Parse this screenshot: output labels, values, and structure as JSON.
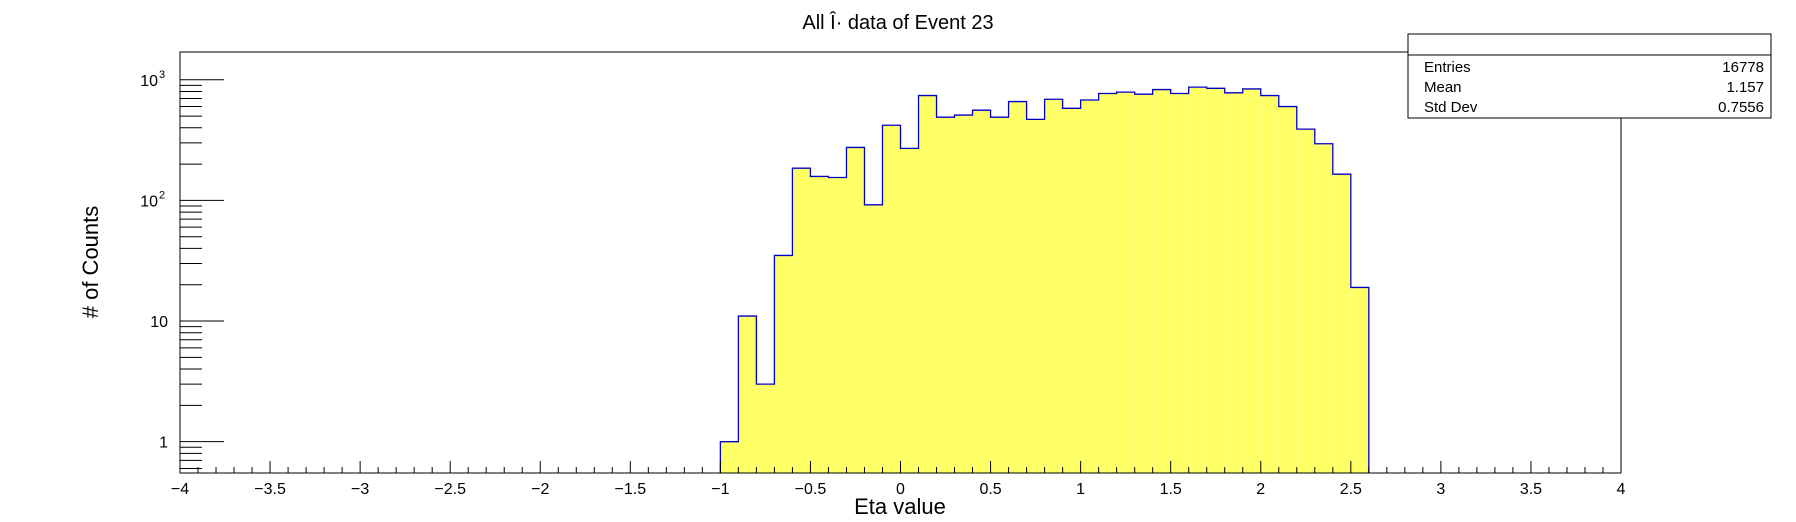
{
  "chart_data": {
    "type": "bar",
    "title": "All Î· data of Event 23",
    "xlabel": "Eta value",
    "ylabel": "# of Counts",
    "xlim": [
      -4,
      4
    ],
    "ylim": [
      0.55,
      1700
    ],
    "yscale": "log",
    "grid": false,
    "x_ticks": [
      -4,
      -3.5,
      -3,
      -2.5,
      -2,
      -1.5,
      -1,
      -0.5,
      0,
      0.5,
      1,
      1.5,
      2,
      2.5,
      3,
      3.5,
      4
    ],
    "x_tick_labels": [
      "−4",
      "−3.5",
      "−3",
      "−2.5",
      "−2",
      "−1.5",
      "−1",
      "−0.5",
      "0",
      "0.5",
      "1",
      "1.5",
      "2",
      "2.5",
      "3",
      "3.5",
      "4"
    ],
    "y_major_ticks": [
      1,
      10,
      100,
      1000
    ],
    "y_tick_labels": [
      {
        "value": 1,
        "base": "1",
        "exp": ""
      },
      {
        "value": 10,
        "base": "10",
        "exp": ""
      },
      {
        "value": 100,
        "base": "10",
        "exp": "2"
      },
      {
        "value": 1000,
        "base": "10",
        "exp": "3"
      }
    ],
    "bin_width": 0.1,
    "bins": [
      {
        "x": -1.0,
        "value": 1
      },
      {
        "x": -0.9,
        "value": 11
      },
      {
        "x": -0.8,
        "value": 3
      },
      {
        "x": -0.7,
        "value": 35
      },
      {
        "x": -0.6,
        "value": 185
      },
      {
        "x": -0.5,
        "value": 158
      },
      {
        "x": -0.4,
        "value": 155
      },
      {
        "x": -0.3,
        "value": 275
      },
      {
        "x": -0.2,
        "value": 92
      },
      {
        "x": -0.1,
        "value": 420
      },
      {
        "x": 0.0,
        "value": 270
      },
      {
        "x": 0.1,
        "value": 740
      },
      {
        "x": 0.2,
        "value": 490
      },
      {
        "x": 0.3,
        "value": 510
      },
      {
        "x": 0.4,
        "value": 560
      },
      {
        "x": 0.5,
        "value": 490
      },
      {
        "x": 0.6,
        "value": 660
      },
      {
        "x": 0.7,
        "value": 470
      },
      {
        "x": 0.8,
        "value": 690
      },
      {
        "x": 0.9,
        "value": 580
      },
      {
        "x": 1.0,
        "value": 680
      },
      {
        "x": 1.1,
        "value": 770
      },
      {
        "x": 1.2,
        "value": 790
      },
      {
        "x": 1.3,
        "value": 760
      },
      {
        "x": 1.4,
        "value": 830
      },
      {
        "x": 1.5,
        "value": 770
      },
      {
        "x": 1.6,
        "value": 870
      },
      {
        "x": 1.7,
        "value": 850
      },
      {
        "x": 1.8,
        "value": 780
      },
      {
        "x": 1.9,
        "value": 840
      },
      {
        "x": 2.0,
        "value": 740
      },
      {
        "x": 2.1,
        "value": 600
      },
      {
        "x": 2.2,
        "value": 390
      },
      {
        "x": 2.3,
        "value": 295
      },
      {
        "x": 2.4,
        "value": 165
      },
      {
        "x": 2.5,
        "value": 19
      }
    ],
    "fill_color": "#ffff66",
    "line_color": "#0000cc",
    "stats_box": {
      "placement": "top-right",
      "rows": [
        {
          "label": "Entries",
          "value": "16778"
        },
        {
          "label": "Mean",
          "value": "1.157"
        },
        {
          "label": "Std Dev",
          "value": "0.7556"
        }
      ]
    }
  }
}
